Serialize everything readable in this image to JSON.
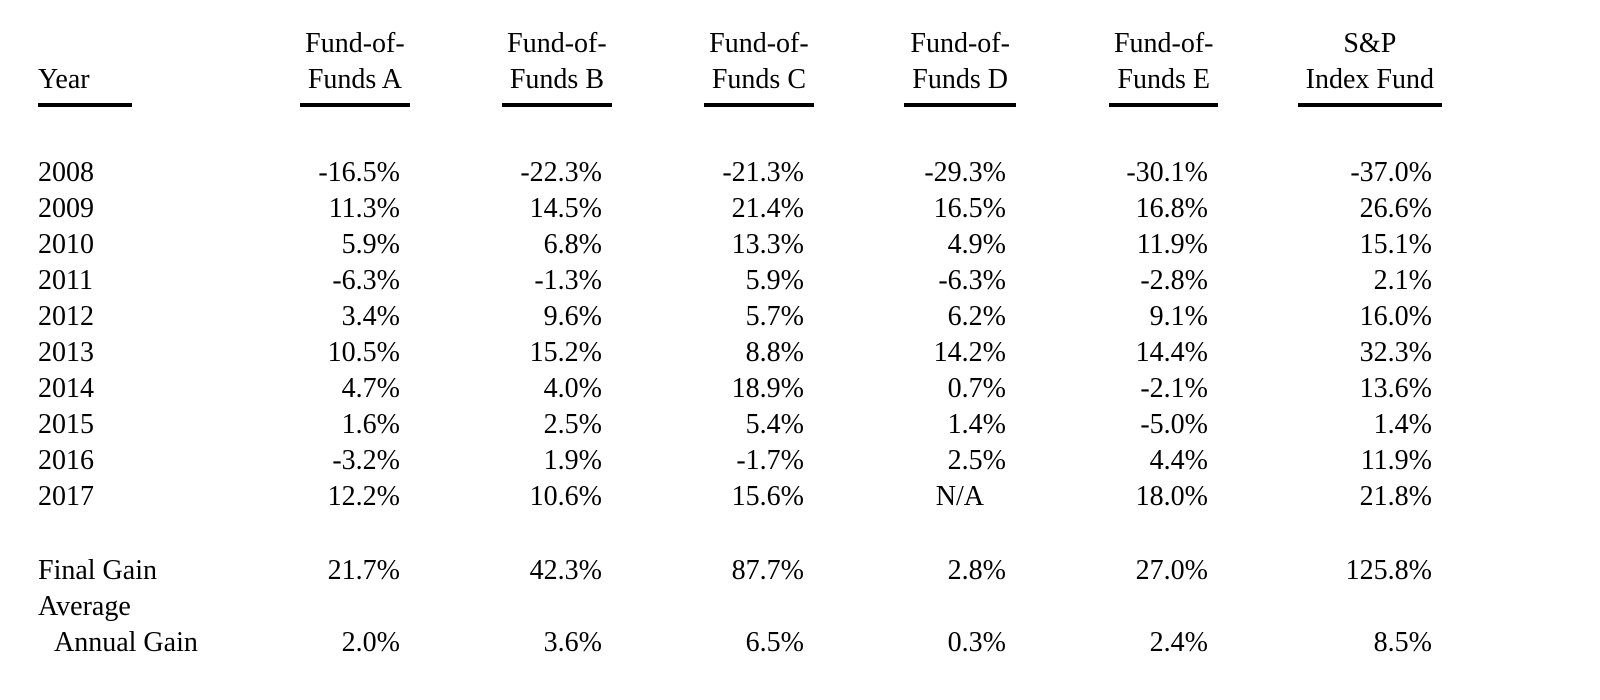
{
  "document": {
    "background_color": "#ffffff",
    "text_color": "#000000",
    "underline_color": "#000000"
  },
  "table": {
    "columns": [
      {
        "id": "year",
        "line1": "",
        "line2": "Year"
      },
      {
        "id": "fund_a",
        "line1": "Fund-of-",
        "line2": "Funds A"
      },
      {
        "id": "fund_b",
        "line1": "Fund-of-",
        "line2": "Funds B"
      },
      {
        "id": "fund_c",
        "line1": "Fund-of-",
        "line2": "Funds C"
      },
      {
        "id": "fund_d",
        "line1": "Fund-of-",
        "line2": "Funds D"
      },
      {
        "id": "fund_e",
        "line1": "Fund-of-",
        "line2": "Funds E"
      },
      {
        "id": "sp",
        "line1": "S&P",
        "line2": "Index Fund"
      }
    ],
    "year_rows": [
      {
        "year": "2008",
        "values": [
          "-16.5%",
          "-22.3%",
          "-21.3%",
          "-29.3%",
          "-30.1%",
          "-37.0%"
        ]
      },
      {
        "year": "2009",
        "values": [
          "11.3%",
          "14.5%",
          "21.4%",
          "16.5%",
          "16.8%",
          "26.6%"
        ]
      },
      {
        "year": "2010",
        "values": [
          "5.9%",
          "6.8%",
          "13.3%",
          "4.9%",
          "11.9%",
          "15.1%"
        ]
      },
      {
        "year": "2011",
        "values": [
          "-6.3%",
          "-1.3%",
          "5.9%",
          "-6.3%",
          "-2.8%",
          "2.1%"
        ]
      },
      {
        "year": "2012",
        "values": [
          "3.4%",
          "9.6%",
          "5.7%",
          "6.2%",
          "9.1%",
          "16.0%"
        ]
      },
      {
        "year": "2013",
        "values": [
          "10.5%",
          "15.2%",
          "8.8%",
          "14.2%",
          "14.4%",
          "32.3%"
        ]
      },
      {
        "year": "2014",
        "values": [
          "4.7%",
          "4.0%",
          "18.9%",
          "0.7%",
          "-2.1%",
          "13.6%"
        ]
      },
      {
        "year": "2015",
        "values": [
          "1.6%",
          "2.5%",
          "5.4%",
          "1.4%",
          "-5.0%",
          "1.4%"
        ]
      },
      {
        "year": "2016",
        "values": [
          "-3.2%",
          "1.9%",
          "-1.7%",
          "2.5%",
          "4.4%",
          "11.9%"
        ]
      },
      {
        "year": "2017",
        "values": [
          "12.2%",
          "10.6%",
          "15.6%",
          "N/A",
          "18.0%",
          "21.8%"
        ]
      }
    ],
    "summary_rows": [
      {
        "label": "Final Gain",
        "indent": false,
        "values": [
          "21.7%",
          "42.3%",
          "87.7%",
          "2.8%",
          "27.0%",
          "125.8%"
        ]
      },
      {
        "label": "Average",
        "indent": false,
        "values": [
          "",
          "",
          "",
          "",
          "",
          ""
        ]
      },
      {
        "label": "Annual Gain",
        "indent": true,
        "values": [
          "2.0%",
          "3.6%",
          "6.5%",
          "0.3%",
          "2.4%",
          "8.5%"
        ]
      }
    ]
  }
}
